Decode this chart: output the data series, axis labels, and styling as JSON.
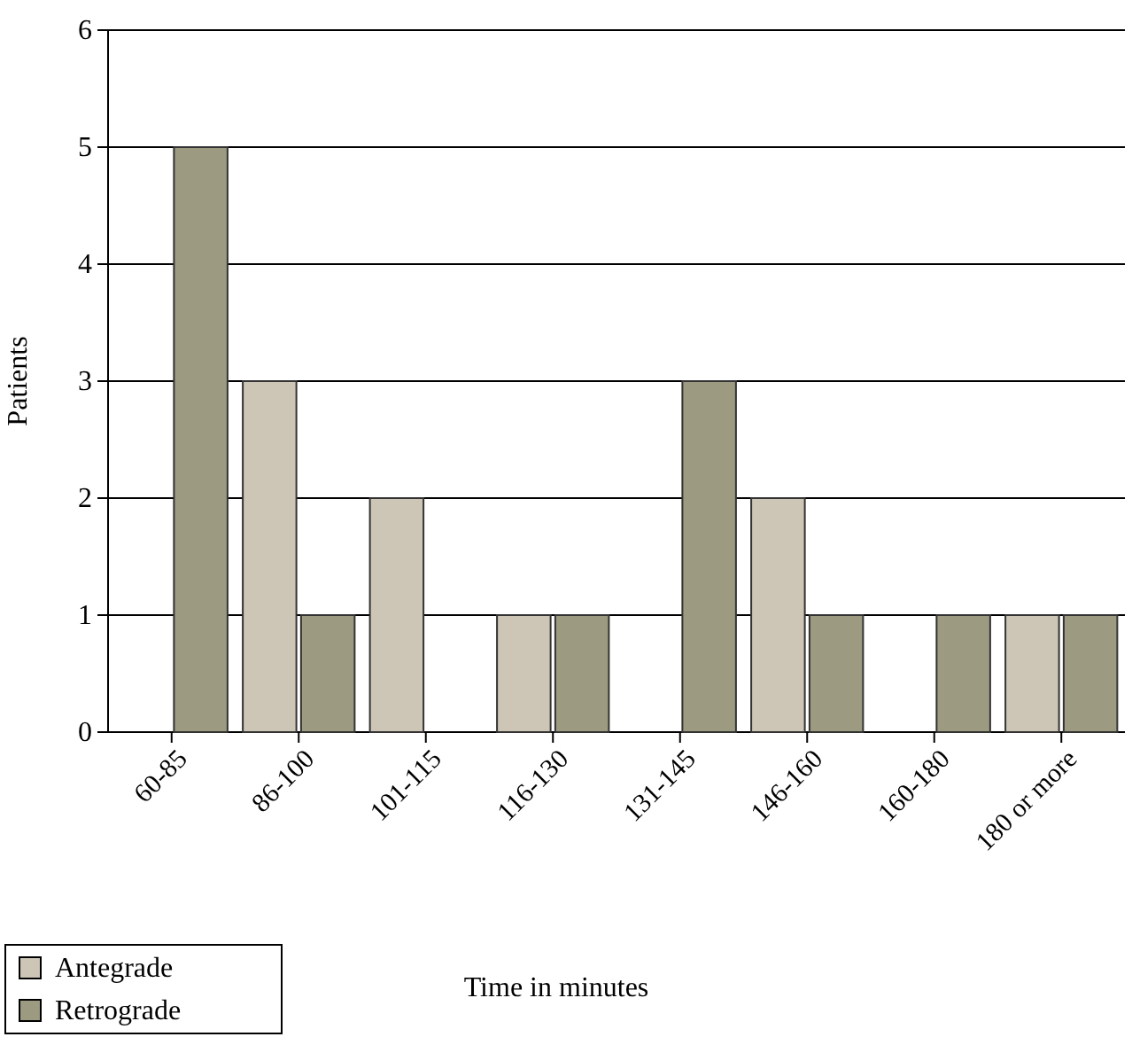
{
  "chart_data": {
    "type": "bar",
    "xlabel": "Time in minutes",
    "ylabel": "Patients",
    "categories": [
      "60-85",
      "86-100",
      "101-115",
      "116-130",
      "131-145",
      "146-160",
      "160-180",
      "180 or more"
    ],
    "series": [
      {
        "name": "Antegrade",
        "color": "#cdc6b6",
        "values": [
          0,
          3,
          2,
          1,
          0,
          2,
          0,
          1
        ]
      },
      {
        "name": "Retrograde",
        "color": "#9c9a80",
        "values": [
          5,
          1,
          0,
          1,
          3,
          1,
          1,
          1
        ]
      }
    ],
    "ylim": [
      0,
      6
    ],
    "yticks": [
      0,
      1,
      2,
      3,
      4,
      5,
      6
    ],
    "grid": "y",
    "legend": "bottom left"
  }
}
